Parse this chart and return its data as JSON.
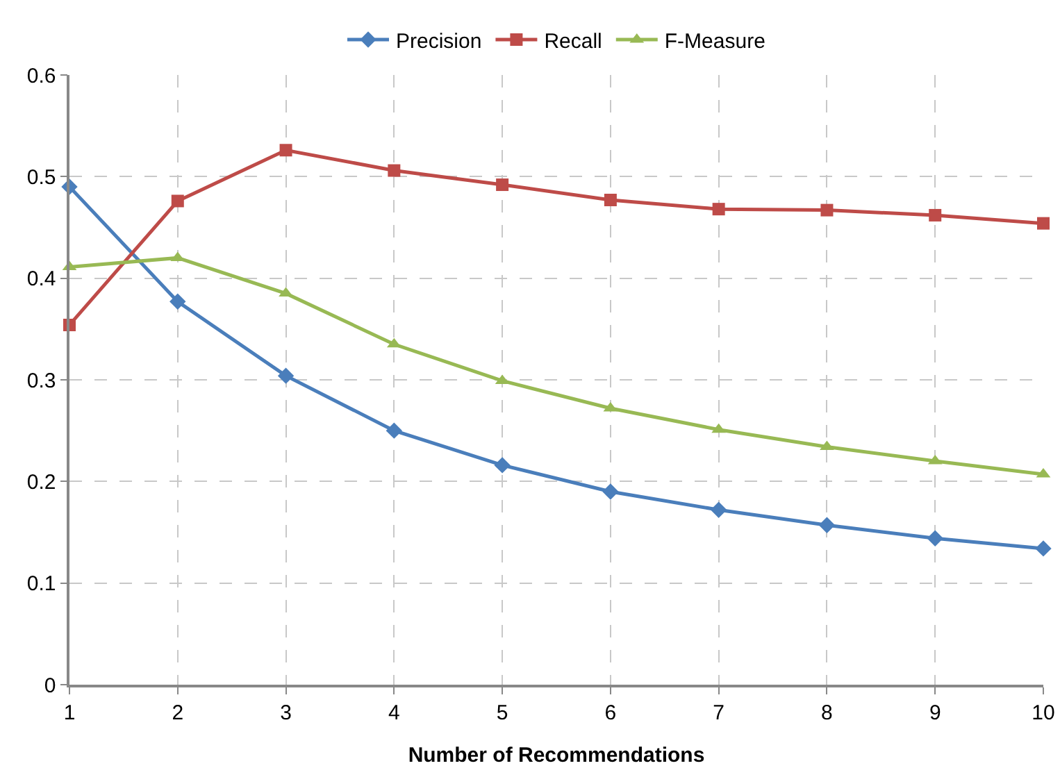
{
  "chart_data": {
    "type": "line",
    "xlabel": "Number of Recommendations",
    "x": [
      1,
      2,
      3,
      4,
      5,
      6,
      7,
      8,
      9,
      10
    ],
    "xlim": [
      1,
      10
    ],
    "xticks": [
      1,
      2,
      3,
      4,
      5,
      6,
      7,
      8,
      9,
      10
    ],
    "ylim": [
      0,
      0.6
    ],
    "yticks": [
      0,
      0.1,
      0.2,
      0.3,
      0.4,
      0.5,
      0.6
    ],
    "grid": true,
    "legend": "top",
    "line_style": "solid",
    "series": [
      {
        "name": "Precision",
        "color": "#4a7ebb",
        "marker": "diamond",
        "values": [
          0.49,
          0.377,
          0.304,
          0.25,
          0.216,
          0.19,
          0.172,
          0.157,
          0.144,
          0.134
        ]
      },
      {
        "name": "Recall",
        "color": "#be4b48",
        "marker": "square",
        "values": [
          0.354,
          0.476,
          0.526,
          0.506,
          0.492,
          0.477,
          0.468,
          0.467,
          0.462,
          0.454
        ]
      },
      {
        "name": "F-Measure",
        "color": "#98b954",
        "marker": "triangle",
        "values": [
          0.411,
          0.42,
          0.385,
          0.335,
          0.299,
          0.272,
          0.251,
          0.234,
          0.22,
          0.207
        ]
      }
    ]
  }
}
